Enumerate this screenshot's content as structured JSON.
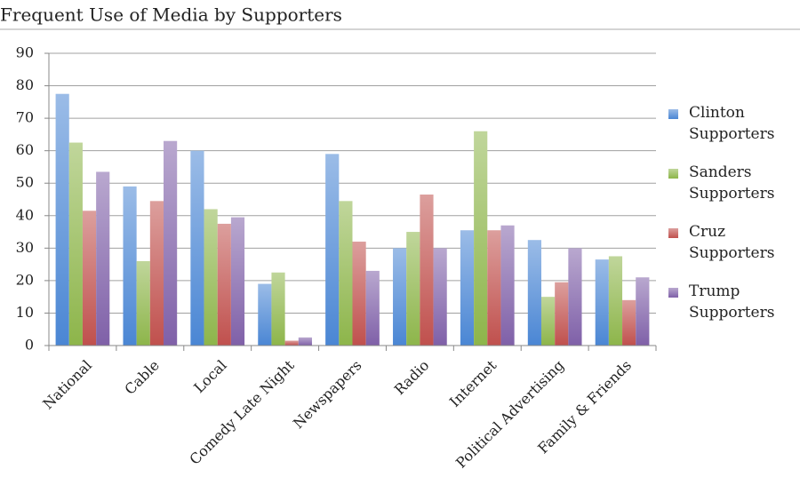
{
  "chart_data": {
    "type": "bar",
    "title": "Frequent Use of Media by Supporters",
    "categories": [
      "National",
      "Cable",
      "Local",
      "Comedy Late Night",
      "Newspapers",
      "Radio",
      "Internet",
      "Political Advertising",
      "Family & Friends"
    ],
    "series": [
      {
        "name": "Clinton Supporters",
        "color": "#4a86d4",
        "values": [
          77.5,
          49,
          60,
          19,
          59,
          30,
          35.5,
          32.5,
          26.5
        ]
      },
      {
        "name": "Sanders Supporters",
        "color": "#8db54a",
        "values": [
          62.5,
          26,
          42,
          22.5,
          44.5,
          35,
          66,
          15,
          27.5
        ]
      },
      {
        "name": "Cruz Supporters",
        "color": "#c0504d",
        "values": [
          41.5,
          44.5,
          37.5,
          1.5,
          32,
          46.5,
          35.5,
          19.5,
          14
        ]
      },
      {
        "name": "Trump Supporters",
        "color": "#7f60a8",
        "values": [
          53.5,
          63,
          39.5,
          2.5,
          23,
          30,
          37,
          30,
          21
        ]
      }
    ],
    "ylim": [
      0,
      90
    ],
    "yticks": [
      0,
      10,
      20,
      30,
      40,
      50,
      60,
      70,
      80,
      90
    ],
    "grid": true,
    "legend": "right"
  }
}
